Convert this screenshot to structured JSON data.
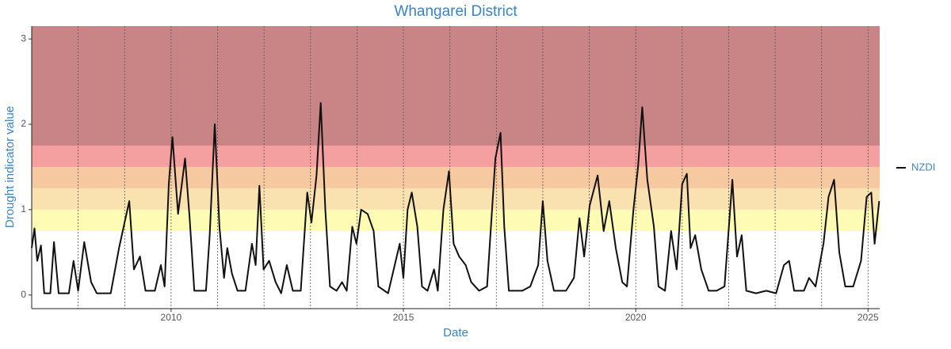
{
  "chart_data": {
    "type": "line",
    "title": "Whangarei District",
    "x_label": "Date",
    "y_label": "Drought indicator value",
    "xlim": [
      2007,
      2025.25
    ],
    "xticks": [
      2010,
      2015,
      2020,
      2025
    ],
    "xgrid": [
      2008,
      2009,
      2010,
      2011,
      2012,
      2013,
      2014,
      2015,
      2016,
      2017,
      2018,
      2019,
      2020,
      2021,
      2022,
      2023,
      2024,
      2025
    ],
    "ylim": [
      -0.16,
      3.15
    ],
    "yticks": [
      0,
      1,
      2,
      3
    ],
    "bands": [
      {
        "from": 0.75,
        "to": 1.0,
        "color": "#fdfbb4"
      },
      {
        "from": 1.0,
        "to": 1.25,
        "color": "#f9e2b0"
      },
      {
        "from": 1.25,
        "to": 1.5,
        "color": "#f7c9a0"
      },
      {
        "from": 1.5,
        "to": 1.75,
        "color": "#f4a0a0"
      },
      {
        "from": 1.75,
        "to": 3.15,
        "color": "#c98585"
      }
    ],
    "x": [
      2007.0,
      2007.06,
      2007.12,
      2007.2,
      2007.27,
      2007.4,
      2007.48,
      2007.58,
      2007.8,
      2007.9,
      2008.0,
      2008.13,
      2008.28,
      2008.4,
      2008.7,
      2008.88,
      2009.1,
      2009.2,
      2009.33,
      2009.45,
      2009.65,
      2009.78,
      2009.86,
      2009.95,
      2010.03,
      2010.15,
      2010.3,
      2010.4,
      2010.5,
      2010.75,
      2010.83,
      2010.94,
      2011.04,
      2011.14,
      2011.21,
      2011.31,
      2011.43,
      2011.6,
      2011.74,
      2011.82,
      2011.9,
      2011.99,
      2012.11,
      2012.25,
      2012.37,
      2012.49,
      2012.62,
      2012.79,
      2012.93,
      2013.02,
      2013.13,
      2013.22,
      2013.32,
      2013.42,
      2013.56,
      2013.68,
      2013.78,
      2013.9,
      2013.99,
      2014.09,
      2014.23,
      2014.36,
      2014.46,
      2014.67,
      2014.92,
      2015.0,
      2015.09,
      2015.18,
      2015.3,
      2015.4,
      2015.52,
      2015.66,
      2015.74,
      2015.86,
      2015.98,
      2016.08,
      2016.2,
      2016.34,
      2016.46,
      2016.63,
      2016.8,
      2016.98,
      2017.09,
      2017.17,
      2017.27,
      2017.56,
      2017.73,
      2017.9,
      2018.0,
      2018.1,
      2018.24,
      2018.5,
      2018.67,
      2018.79,
      2018.89,
      2019.01,
      2019.18,
      2019.31,
      2019.43,
      2019.57,
      2019.71,
      2019.81,
      2019.95,
      2020.05,
      2020.14,
      2020.25,
      2020.39,
      2020.49,
      2020.63,
      2020.76,
      2020.88,
      2021.0,
      2021.1,
      2021.18,
      2021.28,
      2021.41,
      2021.57,
      2021.74,
      2021.91,
      2022.08,
      2022.18,
      2022.28,
      2022.38,
      2022.59,
      2022.81,
      2023.02,
      2023.19,
      2023.3,
      2023.41,
      2023.62,
      2023.73,
      2023.87,
      2024.04,
      2024.15,
      2024.27,
      2024.38,
      2024.51,
      2024.68,
      2024.85,
      2024.97,
      2025.07,
      2025.14,
      2025.24
    ],
    "series": [
      {
        "name": "NZDI",
        "color": "#111111",
        "values": [
          0.55,
          0.78,
          0.4,
          0.58,
          0.02,
          0.02,
          0.62,
          0.02,
          0.02,
          0.4,
          0.05,
          0.62,
          0.15,
          0.02,
          0.02,
          0.55,
          1.1,
          0.3,
          0.45,
          0.05,
          0.05,
          0.35,
          0.1,
          1.3,
          1.85,
          0.95,
          1.6,
          0.9,
          0.05,
          0.05,
          0.7,
          2.0,
          0.8,
          0.2,
          0.55,
          0.25,
          0.05,
          0.05,
          0.6,
          0.35,
          1.28,
          0.3,
          0.4,
          0.15,
          0.02,
          0.35,
          0.05,
          0.05,
          1.2,
          0.85,
          1.4,
          2.25,
          1.0,
          0.1,
          0.05,
          0.15,
          0.05,
          0.8,
          0.6,
          1.0,
          0.95,
          0.75,
          0.1,
          0.02,
          0.6,
          0.2,
          1.0,
          1.2,
          0.8,
          0.1,
          0.05,
          0.3,
          0.05,
          1.0,
          1.45,
          0.6,
          0.45,
          0.35,
          0.15,
          0.05,
          0.1,
          1.6,
          1.9,
          0.8,
          0.05,
          0.05,
          0.1,
          0.35,
          1.1,
          0.4,
          0.05,
          0.05,
          0.2,
          0.9,
          0.45,
          1.05,
          1.4,
          0.75,
          1.1,
          0.55,
          0.15,
          0.1,
          1.0,
          1.5,
          2.2,
          1.35,
          0.8,
          0.1,
          0.05,
          0.75,
          0.3,
          1.3,
          1.42,
          0.55,
          0.7,
          0.3,
          0.05,
          0.05,
          0.1,
          1.35,
          0.45,
          0.7,
          0.05,
          0.02,
          0.05,
          0.02,
          0.35,
          0.4,
          0.05,
          0.05,
          0.2,
          0.1,
          0.6,
          1.15,
          1.35,
          0.5,
          0.1,
          0.1,
          0.4,
          1.15,
          1.2,
          0.6,
          1.1
        ]
      }
    ]
  }
}
